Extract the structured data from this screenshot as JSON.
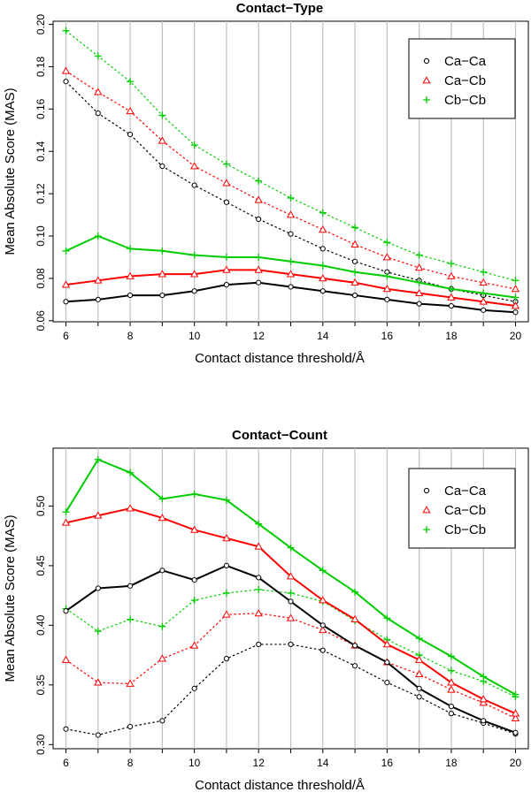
{
  "chart_data": [
    {
      "type": "line",
      "title": "Contact−Type",
      "xlabel": "Contact distance threshold/Å",
      "ylabel": "Mean Absolute Score (MAS)",
      "x": [
        6,
        7,
        8,
        9,
        10,
        11,
        12,
        13,
        14,
        15,
        16,
        17,
        18,
        19,
        20
      ],
      "xticks": [
        "6",
        "8",
        "10",
        "12",
        "14",
        "16",
        "18",
        "20"
      ],
      "xlim": [
        5.6,
        20.4
      ],
      "ylim": [
        0.0595,
        0.2015
      ],
      "yticks": [
        "0.06",
        "0.08",
        "0.10",
        "0.12",
        "0.14",
        "0.16",
        "0.18",
        "0.20"
      ],
      "grid": "vertical at each integer x",
      "legend": "top-right",
      "legend_entries": [
        {
          "label": "Ca−Ca",
          "marker": "circle",
          "color": "#000000"
        },
        {
          "label": "Ca−Cb",
          "marker": "triangle",
          "color": "#ff0000"
        },
        {
          "label": "Cb−Cb",
          "marker": "plus",
          "color": "#00cd00"
        }
      ],
      "series": [
        {
          "pair": "Ca−Ca",
          "style": "solid",
          "color": "#000000",
          "marker": "circle",
          "values": [
            0.069,
            0.07,
            0.072,
            0.072,
            0.074,
            0.077,
            0.078,
            0.076,
            0.074,
            0.072,
            0.07,
            0.068,
            0.067,
            0.065,
            0.064
          ]
        },
        {
          "pair": "Ca−Cb",
          "style": "solid",
          "color": "#ff0000",
          "marker": "triangle",
          "values": [
            0.077,
            0.079,
            0.081,
            0.082,
            0.082,
            0.084,
            0.084,
            0.082,
            0.08,
            0.078,
            0.075,
            0.073,
            0.071,
            0.069,
            0.067
          ]
        },
        {
          "pair": "Cb−Cb",
          "style": "solid",
          "color": "#00cd00",
          "marker": "plus",
          "values": [
            0.093,
            0.1,
            0.094,
            0.093,
            0.091,
            0.09,
            0.09,
            0.088,
            0.086,
            0.083,
            0.081,
            0.078,
            0.075,
            0.073,
            0.071
          ]
        },
        {
          "pair": "Ca−Ca",
          "style": "dotted",
          "color": "#000000",
          "marker": "circle",
          "values": [
            0.173,
            0.158,
            0.148,
            0.133,
            0.124,
            0.116,
            0.108,
            0.101,
            0.094,
            0.088,
            0.083,
            0.079,
            0.075,
            0.072,
            0.069
          ]
        },
        {
          "pair": "Ca−Cb",
          "style": "dotted",
          "color": "#ff0000",
          "marker": "triangle",
          "values": [
            0.178,
            0.168,
            0.159,
            0.145,
            0.133,
            0.125,
            0.117,
            0.11,
            0.103,
            0.096,
            0.09,
            0.085,
            0.081,
            0.078,
            0.075
          ]
        },
        {
          "pair": "Cb−Cb",
          "style": "dotted",
          "color": "#00cd00",
          "marker": "plus",
          "values": [
            0.197,
            0.185,
            0.173,
            0.157,
            0.143,
            0.134,
            0.126,
            0.118,
            0.111,
            0.104,
            0.097,
            0.091,
            0.087,
            0.083,
            0.079
          ]
        }
      ]
    },
    {
      "type": "line",
      "title": "Contact−Count",
      "xlabel": "Contact distance threshold/Å",
      "ylabel": "Mean Absolute Score (MAS)",
      "x": [
        6,
        7,
        8,
        9,
        10,
        11,
        12,
        13,
        14,
        15,
        16,
        17,
        18,
        19,
        20
      ],
      "xticks": [
        "6",
        "8",
        "10",
        "12",
        "14",
        "16",
        "18",
        "20"
      ],
      "xlim": [
        5.6,
        20.4
      ],
      "ylim": [
        0.2965,
        0.5485
      ],
      "yticks": [
        "0.30",
        "0.35",
        "0.40",
        "0.45",
        "0.50"
      ],
      "grid": "vertical at each integer x",
      "legend": "top-right",
      "legend_entries": [
        {
          "label": "Ca−Ca",
          "marker": "circle",
          "color": "#000000"
        },
        {
          "label": "Ca−Cb",
          "marker": "triangle",
          "color": "#ff0000"
        },
        {
          "label": "Cb−Cb",
          "marker": "plus",
          "color": "#00cd00"
        }
      ],
      "series": [
        {
          "pair": "Ca−Ca",
          "style": "solid",
          "color": "#000000",
          "marker": "circle",
          "values": [
            0.412,
            0.431,
            0.433,
            0.446,
            0.438,
            0.45,
            0.44,
            0.42,
            0.4,
            0.383,
            0.369,
            0.347,
            0.332,
            0.32,
            0.31
          ]
        },
        {
          "pair": "Ca−Cb",
          "style": "solid",
          "color": "#ff0000",
          "marker": "triangle",
          "values": [
            0.486,
            0.492,
            0.498,
            0.49,
            0.48,
            0.473,
            0.466,
            0.441,
            0.421,
            0.405,
            0.384,
            0.371,
            0.352,
            0.338,
            0.326
          ]
        },
        {
          "pair": "Cb−Cb",
          "style": "solid",
          "color": "#00cd00",
          "marker": "plus",
          "values": [
            0.495,
            0.539,
            0.528,
            0.506,
            0.51,
            0.505,
            0.485,
            0.465,
            0.446,
            0.428,
            0.406,
            0.389,
            0.374,
            0.357,
            0.342
          ]
        },
        {
          "pair": "Ca−Ca",
          "style": "dotted",
          "color": "#000000",
          "marker": "circle",
          "values": [
            0.313,
            0.308,
            0.315,
            0.32,
            0.347,
            0.372,
            0.384,
            0.384,
            0.379,
            0.366,
            0.352,
            0.34,
            0.326,
            0.318,
            0.309
          ]
        },
        {
          "pair": "Ca−Cb",
          "style": "dotted",
          "color": "#ff0000",
          "marker": "triangle",
          "values": [
            0.371,
            0.352,
            0.351,
            0.372,
            0.383,
            0.409,
            0.41,
            0.406,
            0.396,
            0.383,
            0.369,
            0.359,
            0.346,
            0.335,
            0.322
          ]
        },
        {
          "pair": "Cb−Cb",
          "style": "dotted",
          "color": "#00cd00",
          "marker": "plus",
          "values": [
            0.414,
            0.395,
            0.405,
            0.399,
            0.421,
            0.427,
            0.43,
            0.427,
            0.42,
            0.404,
            0.388,
            0.375,
            0.362,
            0.353,
            0.34
          ]
        }
      ]
    }
  ]
}
